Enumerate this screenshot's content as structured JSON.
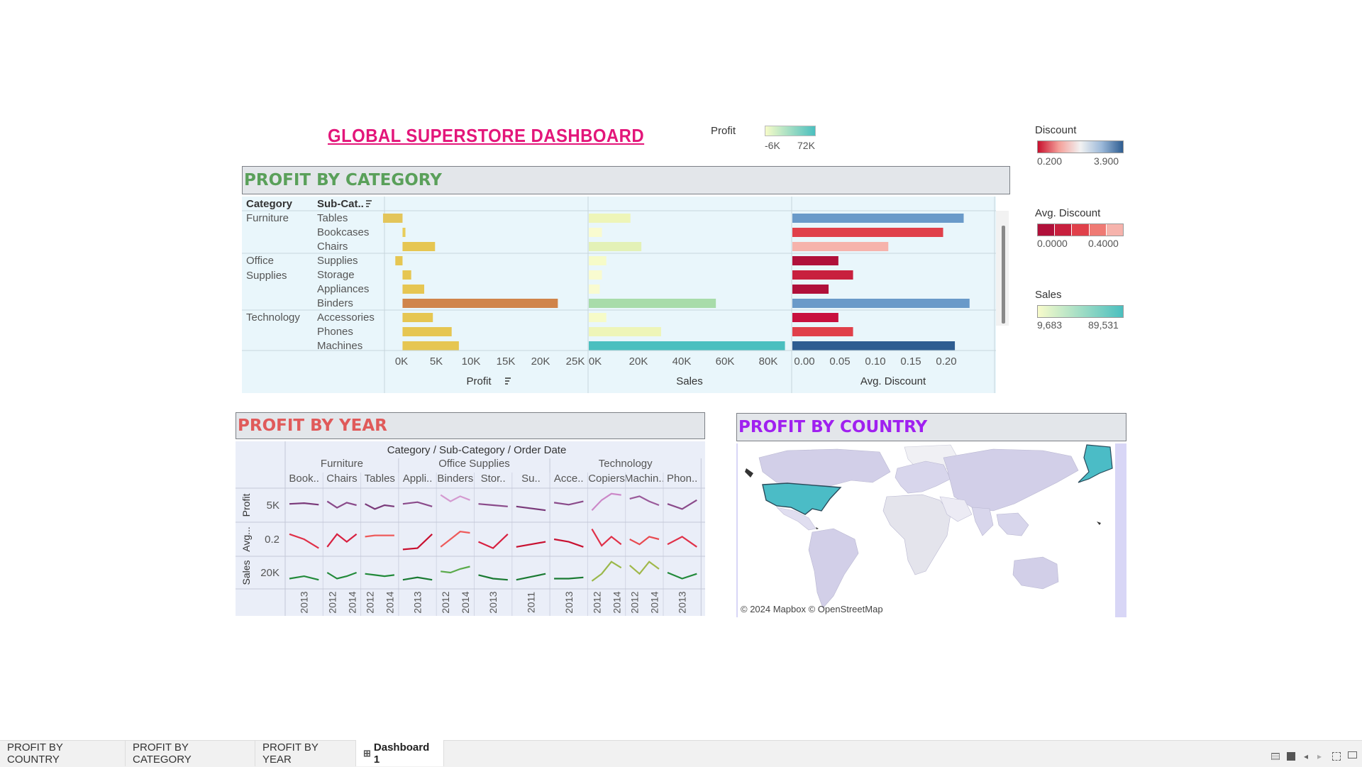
{
  "dashboard_title": "GLOBAL SUPERSTORE DASHBOARD",
  "legends": {
    "profit": {
      "label": "Profit",
      "min": "-6K",
      "max": "72K",
      "colors": [
        "#f6fbc8",
        "#4bbfbf"
      ]
    },
    "discount": {
      "label": "Discount",
      "min": "0.200",
      "max": "3.900",
      "colors": [
        "#c8102e",
        "#f4a09a",
        "#f2f2f2",
        "#9cb9d9",
        "#2e5d91"
      ]
    },
    "avg_discount": {
      "label": "Avg. Discount",
      "min": "0.0000",
      "max": "0.4000",
      "colors": [
        "#b0103a",
        "#c8203e",
        "#e0404a",
        "#ef7a74",
        "#f6b3ac"
      ]
    },
    "sales": {
      "label": "Sales",
      "min": "9,683",
      "max": "89,531",
      "colors": [
        "#f8fbcb",
        "#4bbfbf"
      ]
    }
  },
  "profit_by_category": {
    "header": "PROFIT BY CATEGORY",
    "col_category": "Category",
    "col_subcategory": "Sub-Cat..",
    "sort_icon": "sort-desc-icon",
    "groups": [
      {
        "category": "Furniture",
        "rows": [
          {
            "sub": "Tables",
            "profit": -2700,
            "sales": 19000,
            "avg_discount": 0.175,
            "profit_color": "#e3c55a",
            "sales_color": "#eef5b8",
            "disc_color": "#6a9ac9"
          },
          {
            "sub": "Bookcases",
            "profit": 400,
            "sales": 6000,
            "avg_discount": 0.154,
            "profit_color": "#e8cd5a",
            "sales_color": "#f9fbd0",
            "disc_color": "#e0404a"
          },
          {
            "sub": "Chairs",
            "profit": 4500,
            "sales": 24000,
            "avg_discount": 0.098,
            "profit_color": "#e6c652",
            "sales_color": "#e3f1b7",
            "disc_color": "#f6b3ac"
          }
        ]
      },
      {
        "category": "Office Supplies",
        "rows": [
          {
            "sub": "Supplies",
            "profit": -1000,
            "sales": 8000,
            "avg_discount": 0.047,
            "profit_color": "#e6c652",
            "sales_color": "#f6fbc8",
            "disc_color": "#b0103a"
          },
          {
            "sub": "Storage",
            "profit": 1200,
            "sales": 6000,
            "avg_discount": 0.062,
            "profit_color": "#e6c652",
            "sales_color": "#f9fbd0",
            "disc_color": "#c8203e"
          },
          {
            "sub": "Appliances",
            "profit": 3000,
            "sales": 5000,
            "avg_discount": 0.037,
            "profit_color": "#e6c652",
            "sales_color": "#f9fbd0",
            "disc_color": "#b0103a"
          },
          {
            "sub": "Binders",
            "profit": 21500,
            "sales": 58000,
            "avg_discount": 0.181,
            "profit_color": "#d0844a",
            "sales_color": "#a8dcaa",
            "disc_color": "#6a9ac9"
          }
        ]
      },
      {
        "category": "Technology",
        "rows": [
          {
            "sub": "Accessories",
            "profit": 4200,
            "sales": 8000,
            "avg_discount": 0.047,
            "profit_color": "#e6c652",
            "sales_color": "#f6fbc8",
            "disc_color": "#c8103e"
          },
          {
            "sub": "Phones",
            "profit": 6800,
            "sales": 33000,
            "avg_discount": 0.062,
            "profit_color": "#e6c652",
            "sales_color": "#eef5b8",
            "disc_color": "#e0404a"
          },
          {
            "sub": "Machines",
            "profit": 7800,
            "sales": 89531,
            "avg_discount": 0.166,
            "profit_color": "#e6c652",
            "sales_color": "#4bbfbf",
            "disc_color": "#2e5d91"
          }
        ]
      }
    ],
    "profit_axis": {
      "label": "Profit",
      "ticks": [
        "0K",
        "5K",
        "10K",
        "15K",
        "20K",
        "25K"
      ],
      "range": [
        -2500,
        25000
      ]
    },
    "sales_axis": {
      "label": "Sales",
      "ticks": [
        "0K",
        "20K",
        "40K",
        "60K",
        "80K"
      ],
      "range": [
        0,
        90000
      ]
    },
    "disc_axis": {
      "label": "Avg. Discount",
      "ticks": [
        "0.00",
        "0.05",
        "0.10",
        "0.15",
        "0.20"
      ],
      "range": [
        0,
        0.2
      ]
    }
  },
  "profit_by_year": {
    "header": "PROFIT BY YEAR",
    "top_header": "Category / Sub-Category / Order Date",
    "categories": [
      {
        "name": "Furniture",
        "subs": [
          "Book..",
          "Chairs",
          "Tables"
        ]
      },
      {
        "name": "Office Supplies",
        "subs": [
          "Appli..",
          "Binders",
          "Stor..",
          "Su.."
        ]
      },
      {
        "name": "Technology",
        "subs": [
          "Acce..",
          "Copiers",
          "Machin..",
          "Phon.."
        ]
      }
    ],
    "row_labels": [
      "Profit",
      "Avg...",
      "Sales"
    ],
    "row_ticks": [
      "5K",
      "0.2",
      "20K"
    ],
    "year_labels": [
      [
        "2013"
      ],
      [
        "2012",
        "2014"
      ],
      [
        "2012",
        "2014"
      ],
      [
        "2013"
      ],
      [
        "2012",
        "2014"
      ],
      [
        "2013"
      ],
      [
        "2011"
      ],
      [
        "2013"
      ],
      [
        "2012",
        "2014"
      ],
      [
        "2012",
        "2014"
      ],
      [
        "2013"
      ]
    ],
    "series": {
      "profit": [
        [
          0.45,
          0.42,
          0.48
        ],
        [
          0.35,
          0.6,
          0.4,
          0.5
        ],
        [
          0.45,
          0.65,
          0.5,
          0.55
        ],
        [
          0.45,
          0.38,
          0.55
        ],
        [
          0.1,
          0.35,
          0.15,
          0.3
        ],
        [
          0.45,
          0.5,
          0.55
        ],
        [
          0.55,
          0.7
        ],
        [
          0.4,
          0.48,
          0.35
        ],
        [
          0.7,
          0.3,
          0.05,
          0.1
        ],
        [
          0.25,
          0.15,
          0.35,
          0.5
        ],
        [
          0.45,
          0.65,
          0.3
        ]
      ],
      "avg": [
        [
          0.3,
          0.5,
          0.85
        ],
        [
          0.8,
          0.3,
          0.6,
          0.3
        ],
        [
          0.4,
          0.35,
          0.35,
          0.35
        ],
        [
          0.9,
          0.85,
          0.3
        ],
        [
          0.8,
          0.5,
          0.2,
          0.25
        ],
        [
          0.6,
          0.85,
          0.3
        ],
        [
          0.8,
          0.6
        ],
        [
          0.5,
          0.6,
          0.8
        ],
        [
          0.1,
          0.75,
          0.4,
          0.7
        ],
        [
          0.5,
          0.7,
          0.4,
          0.5
        ],
        [
          0.7,
          0.4,
          0.8
        ]
      ],
      "sales": [
        [
          0.75,
          0.65,
          0.8
        ],
        [
          0.5,
          0.75,
          0.65,
          0.5
        ],
        [
          0.55,
          0.6,
          0.65,
          0.6
        ],
        [
          0.8,
          0.7,
          0.8
        ],
        [
          0.45,
          0.5,
          0.35,
          0.25
        ],
        [
          0.6,
          0.75,
          0.8
        ],
        [
          0.8,
          0.55
        ],
        [
          0.75,
          0.75,
          0.7
        ],
        [
          0.85,
          0.55,
          0.05,
          0.3
        ],
        [
          0.2,
          0.55,
          0.05,
          0.35
        ],
        [
          0.5,
          0.75,
          0.55
        ]
      ]
    },
    "colors": {
      "profit": [
        "#7a3a7a",
        "#8a4a8a",
        "#7a3a7a",
        "#8a4a8a",
        "#d49ad0",
        "#8a4a8a",
        "#7a3a7a",
        "#8a4a8a",
        "#cc88c8",
        "#9a5a9a",
        "#8a4a8a"
      ],
      "avg": [
        "#e03048",
        "#d82040",
        "#ee5a5a",
        "#c81030",
        "#ee5a5a",
        "#d82040",
        "#c81030",
        "#c81030",
        "#e03048",
        "#e84a50",
        "#e03048"
      ],
      "sales": [
        "#228a3a",
        "#228a3a",
        "#228a3a",
        "#1a7a32",
        "#5aaa4a",
        "#1a7a32",
        "#1a7a32",
        "#1a7a32",
        "#9ab84a",
        "#a0b84a",
        "#228a3a"
      ]
    }
  },
  "profit_by_country": {
    "header": "PROFIT BY COUNTRY",
    "attribution": "© 2024 Mapbox © OpenStreetMap"
  },
  "tabs": [
    {
      "label": "PROFIT BY COUNTRY",
      "active": false
    },
    {
      "label": "PROFIT BY CATEGORY",
      "active": false
    },
    {
      "label": "PROFIT BY YEAR",
      "active": false
    },
    {
      "label": "Dashboard 1",
      "active": true
    }
  ],
  "status_icons": [
    "grid-icon",
    "presentation-icon",
    "prev-icon",
    "next-icon",
    "fullscreen-icon",
    "share-icon"
  ]
}
